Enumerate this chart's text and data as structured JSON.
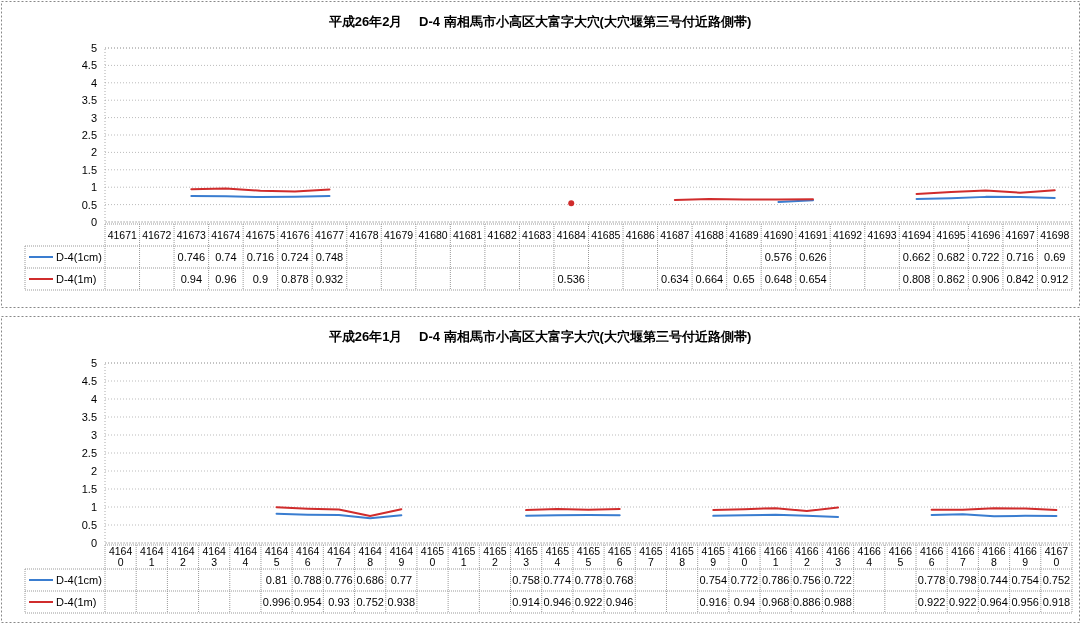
{
  "chart_data": [
    {
      "type": "line",
      "title": "平成26年2月　 D-4 南相馬市小高区大富字大穴(大穴堰第三号付近路側帯)",
      "categories": [
        "41671",
        "41672",
        "41673",
        "41674",
        "41675",
        "41676",
        "41677",
        "41678",
        "41679",
        "41680",
        "41681",
        "41682",
        "41683",
        "41684",
        "41685",
        "41686",
        "41687",
        "41688",
        "41689",
        "41690",
        "41691",
        "41692",
        "41693",
        "41694",
        "41695",
        "41696",
        "41697",
        "41698"
      ],
      "series": [
        {
          "name": "D-4(1cm)",
          "color": "#3a7dd0",
          "values": [
            null,
            null,
            0.746,
            0.74,
            0.716,
            0.724,
            0.748,
            null,
            null,
            null,
            null,
            null,
            null,
            null,
            null,
            null,
            null,
            null,
            null,
            0.576,
            0.626,
            null,
            null,
            0.662,
            0.682,
            0.722,
            0.716,
            0.69
          ]
        },
        {
          "name": "D-4(1m)",
          "color": "#d02c2c",
          "values": [
            null,
            null,
            0.94,
            0.96,
            0.9,
            0.878,
            0.932,
            null,
            null,
            null,
            null,
            null,
            null,
            0.536,
            null,
            null,
            0.634,
            0.664,
            0.65,
            0.648,
            0.654,
            null,
            null,
            0.808,
            0.862,
            0.906,
            0.842,
            0.912
          ]
        }
      ],
      "ylim": [
        0,
        5
      ],
      "yticks": [
        0,
        0.5,
        1,
        1.5,
        2,
        2.5,
        3,
        3.5,
        4,
        4.5,
        5
      ],
      "grid": "y",
      "legend": "bottom",
      "data_labels": true,
      "marker": "none",
      "line_style": "solid"
    },
    {
      "type": "line",
      "title": "平成26年1月　 D-4 南相馬市小高区大富字大穴(大穴堰第三号付近路側帯)",
      "categories": [
        "41640",
        "41641",
        "41642",
        "41643",
        "41644",
        "41645",
        "41646",
        "41647",
        "41648",
        "41649",
        "41650",
        "41651",
        "41652",
        "41653",
        "41654",
        "41655",
        "41656",
        "41657",
        "41658",
        "41659",
        "41660",
        "41661",
        "41662",
        "41663",
        "41664",
        "41665",
        "41666",
        "41667",
        "41668",
        "41669",
        "41670"
      ],
      "series": [
        {
          "name": "D-4(1cm)",
          "color": "#3a7dd0",
          "values": [
            null,
            null,
            null,
            null,
            null,
            0.81,
            0.788,
            0.776,
            0.686,
            0.77,
            null,
            null,
            null,
            0.758,
            0.774,
            0.778,
            0.768,
            null,
            null,
            0.754,
            0.772,
            0.786,
            0.756,
            0.722,
            null,
            null,
            0.778,
            0.798,
            0.744,
            0.754,
            0.752
          ]
        },
        {
          "name": "D-4(1m)",
          "color": "#d02c2c",
          "values": [
            null,
            null,
            null,
            null,
            null,
            0.996,
            0.954,
            0.93,
            0.752,
            0.938,
            null,
            null,
            null,
            0.914,
            0.946,
            0.922,
            0.946,
            null,
            null,
            0.916,
            0.94,
            0.968,
            0.886,
            0.988,
            null,
            null,
            0.922,
            0.922,
            0.964,
            0.956,
            0.918
          ]
        }
      ],
      "ylim": [
        0,
        5
      ],
      "yticks": [
        0,
        0.5,
        1,
        1.5,
        2,
        2.5,
        3,
        3.5,
        4,
        4.5,
        5
      ],
      "grid": "y",
      "legend": "bottom",
      "data_labels": true,
      "marker": "none",
      "line_style": "solid"
    }
  ]
}
